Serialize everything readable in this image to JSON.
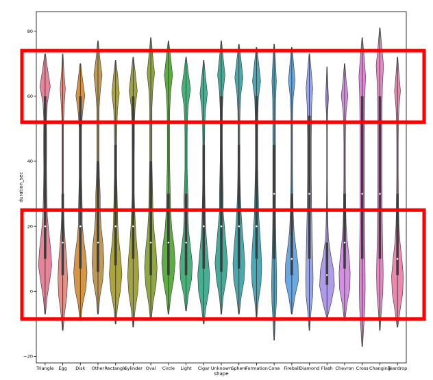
{
  "chart_data": {
    "type": "violin",
    "xlabel": "shape",
    "ylabel": "duration_sec",
    "ylim": [
      -22,
      86
    ],
    "yticks": [
      -20,
      0,
      20,
      40,
      60,
      80
    ],
    "ytick_labels": [
      "−20",
      "0",
      "20",
      "40",
      "60",
      "80"
    ],
    "grid": false,
    "legend": "none",
    "categories": [
      "Triangle",
      "Egg",
      "Disk",
      "Other",
      "Rectangle",
      "Cylinder",
      "Oval",
      "Circle",
      "Light",
      "Cigar",
      "Unknown",
      "Sphere",
      "Formation",
      "Cone",
      "Fireball",
      "Diamond",
      "Flash",
      "Chevron",
      "Cross",
      "Changing",
      "Teardrop"
    ],
    "colors": [
      "#e8849a",
      "#e79088",
      "#d59648",
      "#c09a54",
      "#ada43c",
      "#a3a33b",
      "#8ea73e",
      "#5aaf40",
      "#49b07a",
      "#46ae92",
      "#44aa9a",
      "#47abae",
      "#4aa9b6",
      "#4aa8c6",
      "#6aa8e4",
      "#9aa6ea",
      "#b09aeb",
      "#d28fe3",
      "#ea7ee0",
      "#ee83c7",
      "#ef86ae"
    ],
    "violins": [
      {
        "min": -7,
        "max": 73,
        "q1": 10,
        "median": 20,
        "q3": 60,
        "widths": [
          0.05,
          0.25,
          0.6,
          0.9,
          0.75,
          0.5,
          0.3,
          0.25,
          0.2,
          0.18,
          0.2,
          0.2,
          0.18,
          0.3,
          0.7,
          0.35,
          0.05
        ]
      },
      {
        "min": -12,
        "max": 73,
        "q1": 5,
        "median": 15,
        "q3": 30,
        "widths": [
          0.05,
          0.25,
          0.55,
          0.65,
          0.55,
          0.35,
          0.2,
          0.12,
          0.1,
          0.1,
          0.1,
          0.1,
          0.1,
          0.2,
          0.35,
          0.15,
          0.04
        ]
      },
      {
        "min": -9,
        "max": 70,
        "q1": 7,
        "median": 20,
        "q3": 60,
        "widths": [
          0.05,
          0.3,
          0.75,
          0.9,
          0.75,
          0.45,
          0.25,
          0.25,
          0.2,
          0.15,
          0.15,
          0.15,
          0.15,
          0.3,
          0.6,
          0.3,
          0.05
        ]
      },
      {
        "min": -7,
        "max": 77,
        "q1": 6,
        "median": 15,
        "q3": 40,
        "widths": [
          0.05,
          0.25,
          0.65,
          0.8,
          0.7,
          0.45,
          0.3,
          0.3,
          0.2,
          0.15,
          0.15,
          0.15,
          0.15,
          0.3,
          0.55,
          0.25,
          0.04
        ]
      },
      {
        "min": -10,
        "max": 71,
        "q1": 8,
        "median": 20,
        "q3": 45,
        "widths": [
          0.05,
          0.25,
          0.65,
          0.85,
          0.7,
          0.45,
          0.3,
          0.25,
          0.2,
          0.15,
          0.15,
          0.15,
          0.18,
          0.25,
          0.5,
          0.3,
          0.04
        ]
      },
      {
        "min": -11,
        "max": 72,
        "q1": 10,
        "median": 20,
        "q3": 60,
        "widths": [
          0.05,
          0.25,
          0.6,
          0.75,
          0.65,
          0.45,
          0.3,
          0.2,
          0.12,
          0.12,
          0.12,
          0.15,
          0.15,
          0.25,
          0.55,
          0.3,
          0.04
        ]
      },
      {
        "min": -9,
        "max": 78,
        "q1": 5,
        "median": 15,
        "q3": 40,
        "widths": [
          0.05,
          0.3,
          0.7,
          0.85,
          0.7,
          0.45,
          0.3,
          0.25,
          0.2,
          0.15,
          0.15,
          0.15,
          0.15,
          0.25,
          0.5,
          0.25,
          0.04
        ]
      },
      {
        "min": -7,
        "max": 77,
        "q1": 5,
        "median": 15,
        "q3": 30,
        "widths": [
          0.05,
          0.3,
          0.7,
          0.9,
          0.75,
          0.45,
          0.3,
          0.25,
          0.2,
          0.15,
          0.15,
          0.15,
          0.18,
          0.3,
          0.55,
          0.3,
          0.04
        ]
      },
      {
        "min": -6,
        "max": 72,
        "q1": 5,
        "median": 15,
        "q3": 30,
        "widths": [
          0.05,
          0.3,
          0.75,
          0.85,
          0.6,
          0.35,
          0.25,
          0.3,
          0.2,
          0.15,
          0.15,
          0.15,
          0.18,
          0.3,
          0.6,
          0.3,
          0.04
        ]
      },
      {
        "min": -10,
        "max": 71,
        "q1": 7,
        "median": 20,
        "q3": 45,
        "widths": [
          0.05,
          0.3,
          0.7,
          0.8,
          0.6,
          0.4,
          0.25,
          0.2,
          0.15,
          0.12,
          0.12,
          0.12,
          0.15,
          0.25,
          0.5,
          0.25,
          0.04
        ]
      },
      {
        "min": -7,
        "max": 77,
        "q1": 6,
        "median": 20,
        "q3": 60,
        "widths": [
          0.05,
          0.25,
          0.65,
          0.85,
          0.65,
          0.45,
          0.25,
          0.25,
          0.2,
          0.15,
          0.12,
          0.12,
          0.15,
          0.25,
          0.5,
          0.25,
          0.04
        ]
      },
      {
        "min": -7,
        "max": 76,
        "q1": 7,
        "median": 20,
        "q3": 45,
        "widths": [
          0.05,
          0.3,
          0.7,
          0.8,
          0.65,
          0.45,
          0.3,
          0.2,
          0.15,
          0.12,
          0.12,
          0.12,
          0.15,
          0.25,
          0.55,
          0.3,
          0.04
        ]
      },
      {
        "min": -8,
        "max": 75,
        "q1": 10,
        "median": 20,
        "q3": 60,
        "widths": [
          0.05,
          0.25,
          0.6,
          0.7,
          0.6,
          0.45,
          0.3,
          0.25,
          0.2,
          0.15,
          0.15,
          0.15,
          0.18,
          0.25,
          0.55,
          0.3,
          0.04
        ]
      },
      {
        "min": -15,
        "max": 76,
        "q1": 10,
        "median": 30,
        "q3": 45,
        "widths": [
          0.04,
          0.15,
          0.3,
          0.35,
          0.3,
          0.25,
          0.2,
          0.18,
          0.18,
          0.18,
          0.18,
          0.18,
          0.18,
          0.2,
          0.3,
          0.18,
          0.04
        ]
      },
      {
        "min": -7,
        "max": 75,
        "q1": 5,
        "median": 10,
        "q3": 30,
        "widths": [
          0.05,
          0.4,
          0.9,
          0.85,
          0.55,
          0.3,
          0.2,
          0.15,
          0.12,
          0.1,
          0.1,
          0.1,
          0.12,
          0.2,
          0.45,
          0.25,
          0.04
        ]
      },
      {
        "min": -12,
        "max": 73,
        "q1": 10,
        "median": 30,
        "q3": 54,
        "widths": [
          0.04,
          0.2,
          0.45,
          0.5,
          0.45,
          0.4,
          0.35,
          0.3,
          0.28,
          0.25,
          0.25,
          0.25,
          0.28,
          0.3,
          0.45,
          0.25,
          0.04
        ]
      },
      {
        "min": -8,
        "max": 69,
        "q1": 2,
        "median": 5,
        "q3": 15,
        "widths": [
          0.05,
          0.6,
          1.0,
          0.9,
          0.5,
          0.2,
          0.12,
          0.08,
          0.06,
          0.05,
          0.05,
          0.05,
          0.05,
          0.08,
          0.2,
          0.1,
          0.03
        ]
      },
      {
        "min": -9,
        "max": 70,
        "q1": 7,
        "median": 15,
        "q3": 30,
        "widths": [
          0.05,
          0.3,
          0.7,
          0.75,
          0.6,
          0.35,
          0.2,
          0.15,
          0.12,
          0.1,
          0.1,
          0.1,
          0.12,
          0.2,
          0.45,
          0.2,
          0.04
        ]
      },
      {
        "min": -17,
        "max": 78,
        "q1": 10,
        "median": 30,
        "q3": 60,
        "widths": [
          0.04,
          0.2,
          0.35,
          0.4,
          0.38,
          0.35,
          0.32,
          0.3,
          0.3,
          0.3,
          0.3,
          0.3,
          0.32,
          0.35,
          0.45,
          0.25,
          0.04
        ]
      },
      {
        "min": -12,
        "max": 81,
        "q1": 10,
        "median": 30,
        "q3": 60,
        "widths": [
          0.04,
          0.2,
          0.4,
          0.45,
          0.4,
          0.35,
          0.32,
          0.3,
          0.28,
          0.28,
          0.28,
          0.28,
          0.3,
          0.35,
          0.5,
          0.25,
          0.04
        ]
      },
      {
        "min": -11,
        "max": 72,
        "q1": 5,
        "median": 10,
        "q3": 30,
        "widths": [
          0.05,
          0.35,
          0.7,
          0.8,
          0.6,
          0.35,
          0.2,
          0.15,
          0.12,
          0.1,
          0.1,
          0.1,
          0.12,
          0.2,
          0.4,
          0.2,
          0.04
        ]
      }
    ]
  },
  "annotations": {
    "highlight_color": "#ff0000",
    "highlight_boxes": [
      {
        "y_from": 52,
        "y_to": 74
      },
      {
        "y_from": -8.5,
        "y_to": 25
      }
    ]
  }
}
